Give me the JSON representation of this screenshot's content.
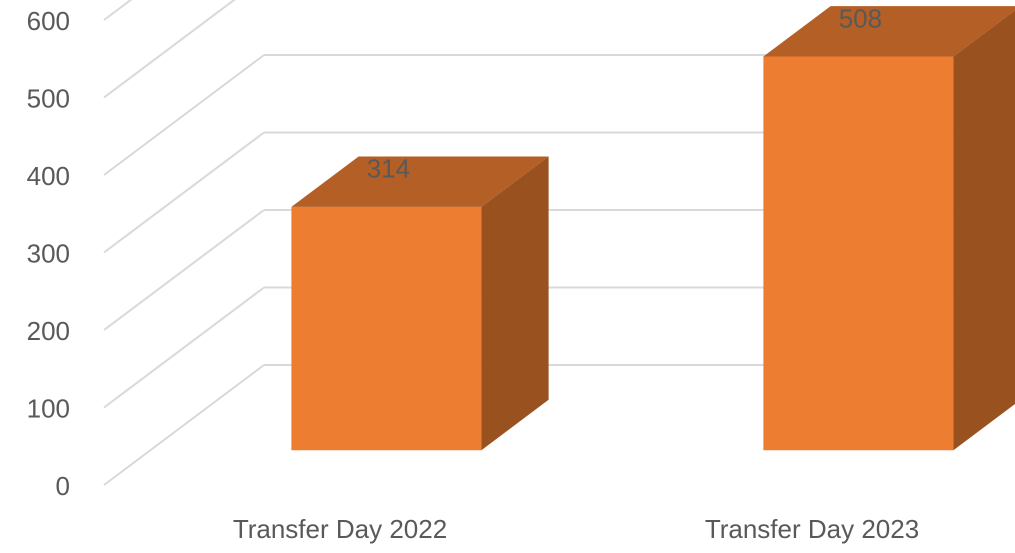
{
  "chart_data": {
    "type": "bar3d",
    "categories": [
      "Transfer Day 2022",
      "Transfer Day 2023"
    ],
    "values": [
      314,
      508
    ],
    "color": "#ed7d31",
    "ylim": [
      0,
      600
    ],
    "yticks": [
      0,
      100,
      200,
      300,
      400,
      500,
      600
    ],
    "grid": true
  }
}
